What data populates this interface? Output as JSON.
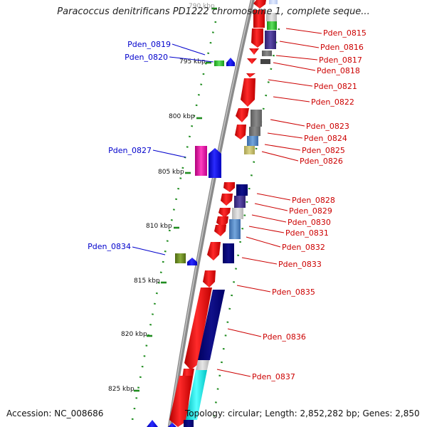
{
  "title": "Paracoccus denitrificans PD1222 chromosome 1, complete seque...",
  "footer": {
    "accession": "Accession: NC_008686",
    "topology": "Topology: circular; Length: 2,852,282 bp; Genes: 2,850"
  },
  "colors": {
    "red": "#ff1414",
    "blue": "#1a1aff",
    "green": "#1f8c1f",
    "backbone": "#8a8a8a",
    "label_red": "#cc0000",
    "label_blue": "#0000cc"
  },
  "scale_labels": [
    "790 kbp",
    "795 kbp",
    "800 kbp",
    "805 kbp",
    "810 kbp",
    "815 kbp",
    "820 kbp",
    "825 kbp"
  ],
  "genes_left": [
    {
      "name": "Pden_0819"
    },
    {
      "name": "Pden_0820"
    },
    {
      "name": "Pden_0827"
    },
    {
      "name": "Pden_0834"
    }
  ],
  "genes_right": [
    {
      "name": "Pden_0815"
    },
    {
      "name": "Pden_0816"
    },
    {
      "name": "Pden_0817"
    },
    {
      "name": "Pden_0818"
    },
    {
      "name": "Pden_0821"
    },
    {
      "name": "Pden_0822"
    },
    {
      "name": "Pden_0823"
    },
    {
      "name": "Pden_0824"
    },
    {
      "name": "Pden_0825"
    },
    {
      "name": "Pden_0826"
    },
    {
      "name": "Pden_0828"
    },
    {
      "name": "Pden_0829"
    },
    {
      "name": "Pden_0830"
    },
    {
      "name": "Pden_0831"
    },
    {
      "name": "Pden_0832"
    },
    {
      "name": "Pden_0833"
    },
    {
      "name": "Pden_0835"
    },
    {
      "name": "Pden_0836"
    },
    {
      "name": "Pden_0837"
    }
  ]
}
